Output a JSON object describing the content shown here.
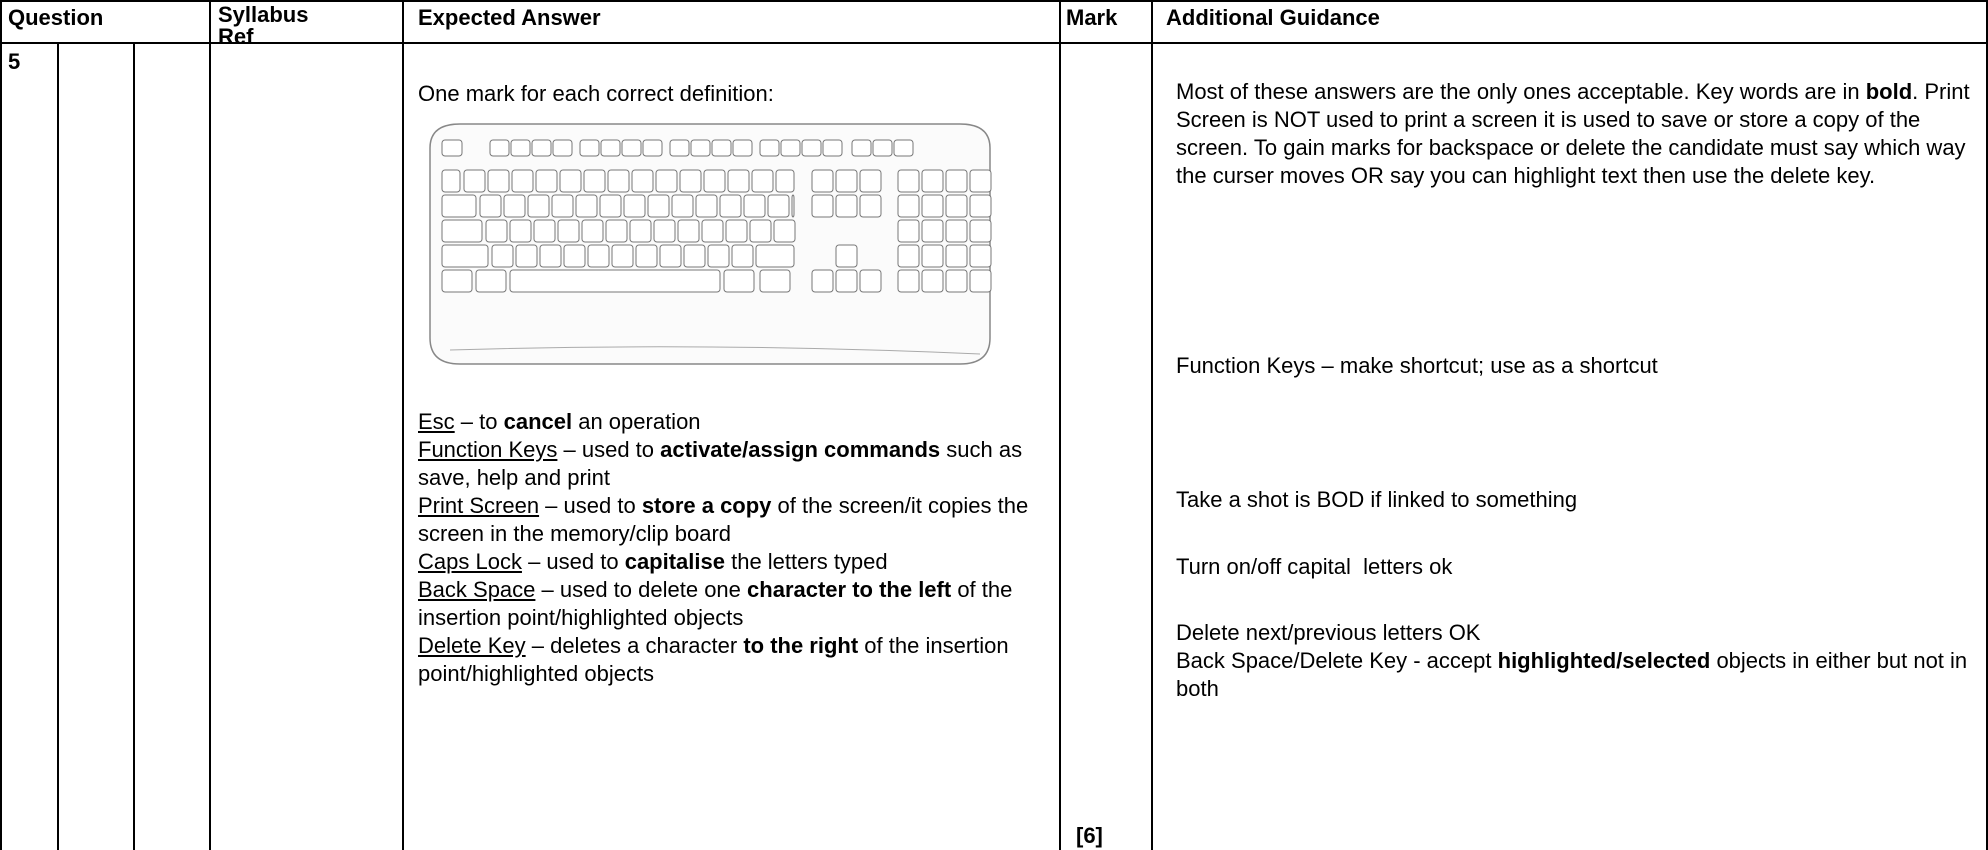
{
  "table": {
    "headers": [
      "Question",
      "Syllabus Ref",
      "Expected Answer",
      "Mark",
      "Additional Guidance"
    ],
    "question": "5",
    "expected_intro": "One mark for each correct definition:",
    "definitions": [
      {
        "key": "Esc",
        "parts": [
          {
            "text": " – to "
          },
          {
            "text": "cancel",
            "bold": true
          },
          {
            "text": " an operation"
          }
        ]
      },
      {
        "key": "Function Keys",
        "parts": [
          {
            "text": " – used to "
          },
          {
            "text": "activate/assign commands",
            "bold": true
          },
          {
            "text": " such as save, help and print"
          }
        ]
      },
      {
        "key": "Print Screen",
        "parts": [
          {
            "text": " – used to "
          },
          {
            "text": "store a copy",
            "bold": true
          },
          {
            "text": " of the screen/it copies the screen in the memory/clip board"
          }
        ]
      },
      {
        "key": "Caps Lock",
        "parts": [
          {
            "text": " – used to "
          },
          {
            "text": "capitalise",
            "bold": true
          },
          {
            "text": " the letters typed"
          }
        ]
      },
      {
        "key": "Back Space",
        "parts": [
          {
            "text": " – used to delete one "
          },
          {
            "text": "character to the left",
            "bold": true
          },
          {
            "text": " of the insertion point/highlighted objects"
          }
        ]
      },
      {
        "key": "Delete Key",
        "parts": [
          {
            "text": " – deletes a character "
          },
          {
            "text": "to the right",
            "bold": true
          },
          {
            "text": " of the insertion point/highlighted objects"
          }
        ]
      }
    ],
    "mark": "[6]",
    "guidance": [
      {
        "parts": [
          {
            "text": "Most of these answers are the only ones acceptable. Key words are in "
          },
          {
            "text": "bold",
            "bold": true
          },
          {
            "text": ". Print Screen is NOT used to print a screen it is used to save or store a copy of the screen. To gain marks for backspace or delete the candidate must say which way the curser moves OR say you can highlight text then use the delete key."
          }
        ]
      },
      {
        "parts": [
          {
            "text": "Function Keys – make shortcut; use as a shortcut"
          }
        ]
      },
      {
        "parts": [
          {
            "text": "Take a shot is BOD if linked to something"
          }
        ]
      },
      {
        "parts": [
          {
            "text": "Turn on/off capital  letters ok"
          }
        ]
      },
      {
        "parts": [
          {
            "text": "Delete next/previous letters OK"
          }
        ]
      },
      {
        "parts": [
          {
            "text": "Back Space/Delete Key - accept "
          },
          {
            "text": "highlighted/selected",
            "bold": true
          },
          {
            "text": " objects in either but not in both"
          }
        ]
      }
    ]
  }
}
